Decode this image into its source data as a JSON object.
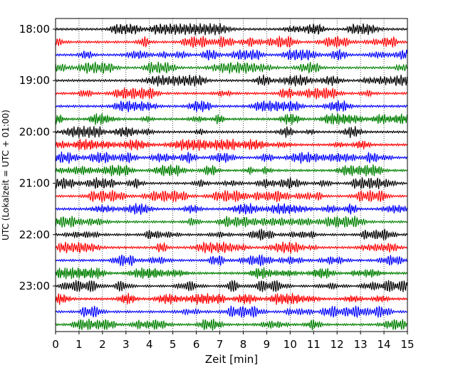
{
  "chart_data": {
    "type": "line",
    "title": "",
    "xlabel": "Zeit  [min]",
    "ylabel": "UTC (Lokalzeit = UTC + 01:00)",
    "xlim": [
      0,
      15
    ],
    "x_ticks": [
      0,
      1,
      2,
      3,
      4,
      5,
      6,
      7,
      8,
      9,
      10,
      11,
      12,
      13,
      14,
      15
    ],
    "y_tick_labels": [
      "18:00",
      "19:00",
      "20:00",
      "21:00",
      "22:00",
      "23:00"
    ],
    "grid": "vertical dotted lines at each minute",
    "trace_colors": [
      "#000000",
      "#ff0000",
      "#0000ff",
      "#008000"
    ],
    "rows": [
      {
        "start": "18:00",
        "color": "#000000"
      },
      {
        "start": "18:15",
        "color": "#ff0000"
      },
      {
        "start": "18:30",
        "color": "#0000ff"
      },
      {
        "start": "18:45",
        "color": "#008000"
      },
      {
        "start": "19:00",
        "color": "#000000"
      },
      {
        "start": "19:15",
        "color": "#ff0000"
      },
      {
        "start": "19:30",
        "color": "#0000ff"
      },
      {
        "start": "19:45",
        "color": "#008000"
      },
      {
        "start": "20:00",
        "color": "#000000"
      },
      {
        "start": "20:15",
        "color": "#ff0000"
      },
      {
        "start": "20:30",
        "color": "#0000ff"
      },
      {
        "start": "20:45",
        "color": "#008000"
      },
      {
        "start": "21:00",
        "color": "#000000"
      },
      {
        "start": "21:15",
        "color": "#ff0000"
      },
      {
        "start": "21:30",
        "color": "#0000ff"
      },
      {
        "start": "21:45",
        "color": "#008000"
      },
      {
        "start": "22:00",
        "color": "#000000"
      },
      {
        "start": "22:15",
        "color": "#ff0000"
      },
      {
        "start": "22:30",
        "color": "#0000ff"
      },
      {
        "start": "22:45",
        "color": "#008000"
      },
      {
        "start": "23:00",
        "color": "#000000"
      },
      {
        "start": "23:15",
        "color": "#ff0000"
      },
      {
        "start": "23:30",
        "color": "#0000ff"
      },
      {
        "start": "23:45",
        "color": "#008000"
      }
    ]
  }
}
